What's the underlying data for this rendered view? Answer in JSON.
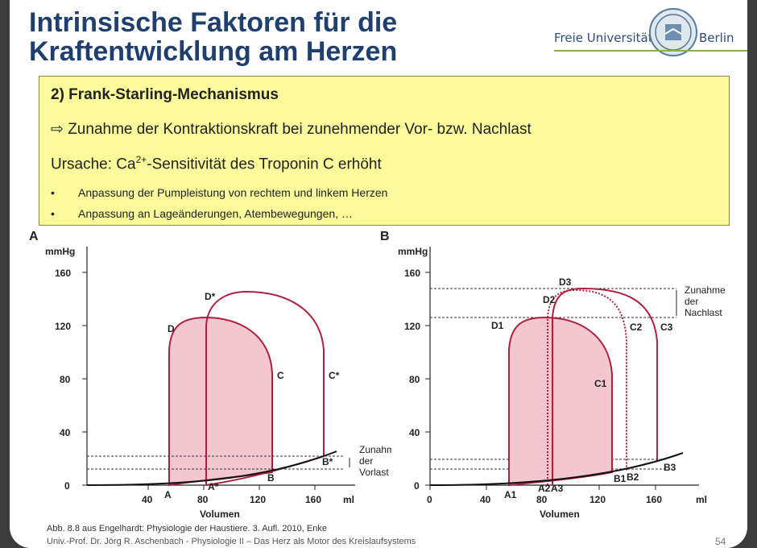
{
  "slide": {
    "title_line1": "Intrinsische Faktoren für die",
    "title_line2": "Kraftentwicklung am Herzen",
    "logo_left": "Freie Universität",
    "logo_right": "Berlin",
    "box": {
      "heading": "2) Frank-Starling-Mechanismus",
      "line1": "⇨ Zunahme der Kontraktionskraft bei zunehmender Vor- bzw. Nachlast",
      "line2_pre": "Ursache: Ca",
      "line2_sup": "2+",
      "line2_post": "-Sensitivität des Troponin C erhöht",
      "bullets": [
        "Anpassung der Pumpleistung von rechtem und linkem Herzen",
        "Anpassung an Lageänderungen, Atembewegungen, …"
      ]
    },
    "footer_source": "Abb. 8.8 aus Engelhardt: Physiologie der Haustiere. 3. Aufl. 2010, Enke",
    "footer_author": "Univ.-Prof. Dr. Jörg R. Aschenbach - Physiologie II – Das Herz als Motor des Kreislaufsystems",
    "page_number": "54"
  },
  "chart_data": [
    {
      "type": "line",
      "panel": "A",
      "ylabel": "mmHg",
      "xlabel": "Volumen",
      "x_unit": "ml",
      "xlim": [
        0,
        185
      ],
      "ylim": [
        0,
        170
      ],
      "x_ticks": [
        "40",
        "80",
        "120",
        "160"
      ],
      "y_ticks": [
        "0",
        "40",
        "80",
        "120",
        "160"
      ],
      "point_labels": [
        "A",
        "A*",
        "B",
        "B*",
        "C",
        "C*",
        "D",
        "D*"
      ],
      "annotation": [
        "Zunahme",
        "der",
        "Vorlast"
      ],
      "colors": {
        "loop": "#b0203e",
        "fill": "#f2c7cf"
      }
    },
    {
      "type": "line",
      "panel": "B",
      "ylabel": "mmHg",
      "xlabel": "Volumen",
      "x_unit": "ml",
      "xlim": [
        0,
        185
      ],
      "ylim": [
        0,
        170
      ],
      "x_ticks": [
        "0",
        "40",
        "80",
        "120",
        "160"
      ],
      "y_ticks": [
        "0",
        "40",
        "80",
        "120",
        "160"
      ],
      "point_labels": [
        "A1",
        "A2",
        "A3",
        "B1",
        "B2",
        "B3",
        "C1",
        "C2",
        "C3",
        "D1",
        "D2",
        "D3"
      ],
      "annotation": [
        "Zunahme",
        "der",
        "Nachlast"
      ],
      "colors": {
        "loop": "#b0203e",
        "fill": "#f2c7cf"
      }
    }
  ]
}
